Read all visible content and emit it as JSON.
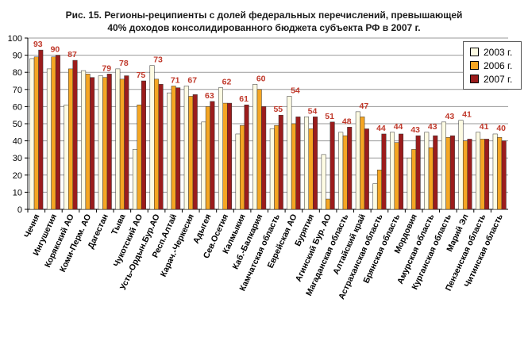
{
  "title_line1": "Рис. 15. Регионы-реципиенты с долей федеральных перечислений, превышающей",
  "title_line2": "40%  доходов консолидированного бюджета субъекта РФ в 2007 г.",
  "chart_data": {
    "type": "bar",
    "title": "Рис. 15. Регионы-реципиенты с долей федеральных перечислений, превышающей 40%  доходов консолидированного бюджета субъекта РФ в 2007 г.",
    "xlabel": "",
    "ylabel": "",
    "ylim": [
      0,
      100
    ],
    "yticks": [
      0,
      10,
      20,
      30,
      40,
      50,
      60,
      70,
      80,
      90,
      100
    ],
    "grid": true,
    "legend_position": "right",
    "categories": [
      "Чечня",
      "Ингушетия",
      "Корякский АО",
      "Коми-Перм. АО",
      "Дагестан",
      "Тыва",
      "Чукотский АО",
      "Усть-Ордын.Бур.АО",
      "Респ.Алтай",
      "Карач.-Черкесия",
      "Адыгея",
      "Сев.Осетия",
      "Калмыкия",
      "Каб.-Балкария",
      "Камчатская область",
      "Еврейская АО",
      "Бурятия",
      "Агинский Бур. АО",
      "Магаданская область",
      "Алтайский край",
      "Астраханская область",
      "Брянская область",
      "Мордовия",
      "Амурская область",
      "Курганская область",
      "Марий Эл",
      "Пензенская область",
      "Читинская область"
    ],
    "series": [
      {
        "name": "2003 г.",
        "color": "#fdfbe3",
        "values": [
          88,
          82,
          61,
          81,
          78,
          82,
          35,
          84,
          68,
          72,
          51,
          71,
          44,
          73,
          47,
          66,
          54,
          32,
          45,
          57,
          15,
          45,
          30,
          45,
          51,
          52,
          45,
          44
        ]
      },
      {
        "name": "2006 г.",
        "color": "#f5a623",
        "values": [
          89,
          89,
          82,
          79,
          77,
          76,
          61,
          76,
          72,
          66,
          60,
          62,
          49,
          70,
          49,
          50,
          47,
          6,
          43,
          54,
          23,
          39,
          35,
          36,
          42,
          40,
          41,
          42
        ]
      },
      {
        "name": "2007 г.",
        "color": "#9b1c1c",
        "values": [
          93,
          90,
          87,
          77,
          79,
          78,
          75,
          73,
          71,
          67,
          63,
          62,
          61,
          60,
          55,
          54,
          54,
          51,
          48,
          47,
          44,
          44,
          43,
          43,
          43,
          41,
          41,
          40
        ]
      }
    ],
    "data_labels": [
      "93",
      "90",
      "87",
      "79",
      "78",
      "75",
      "73",
      "71",
      "67",
      "63",
      "62",
      "61",
      "60",
      "55",
      "54",
      "54",
      "51",
      "48",
      "47",
      "44",
      "44",
      "43",
      "43",
      "43",
      "41",
      "41",
      "40"
    ],
    "data_labels_for_category_index": [
      0,
      1,
      2,
      4,
      5,
      6,
      7,
      8,
      9,
      10,
      11,
      12,
      13,
      14,
      15,
      16,
      17,
      18,
      19,
      20,
      21,
      22,
      23,
      24,
      25,
      26,
      27
    ]
  }
}
